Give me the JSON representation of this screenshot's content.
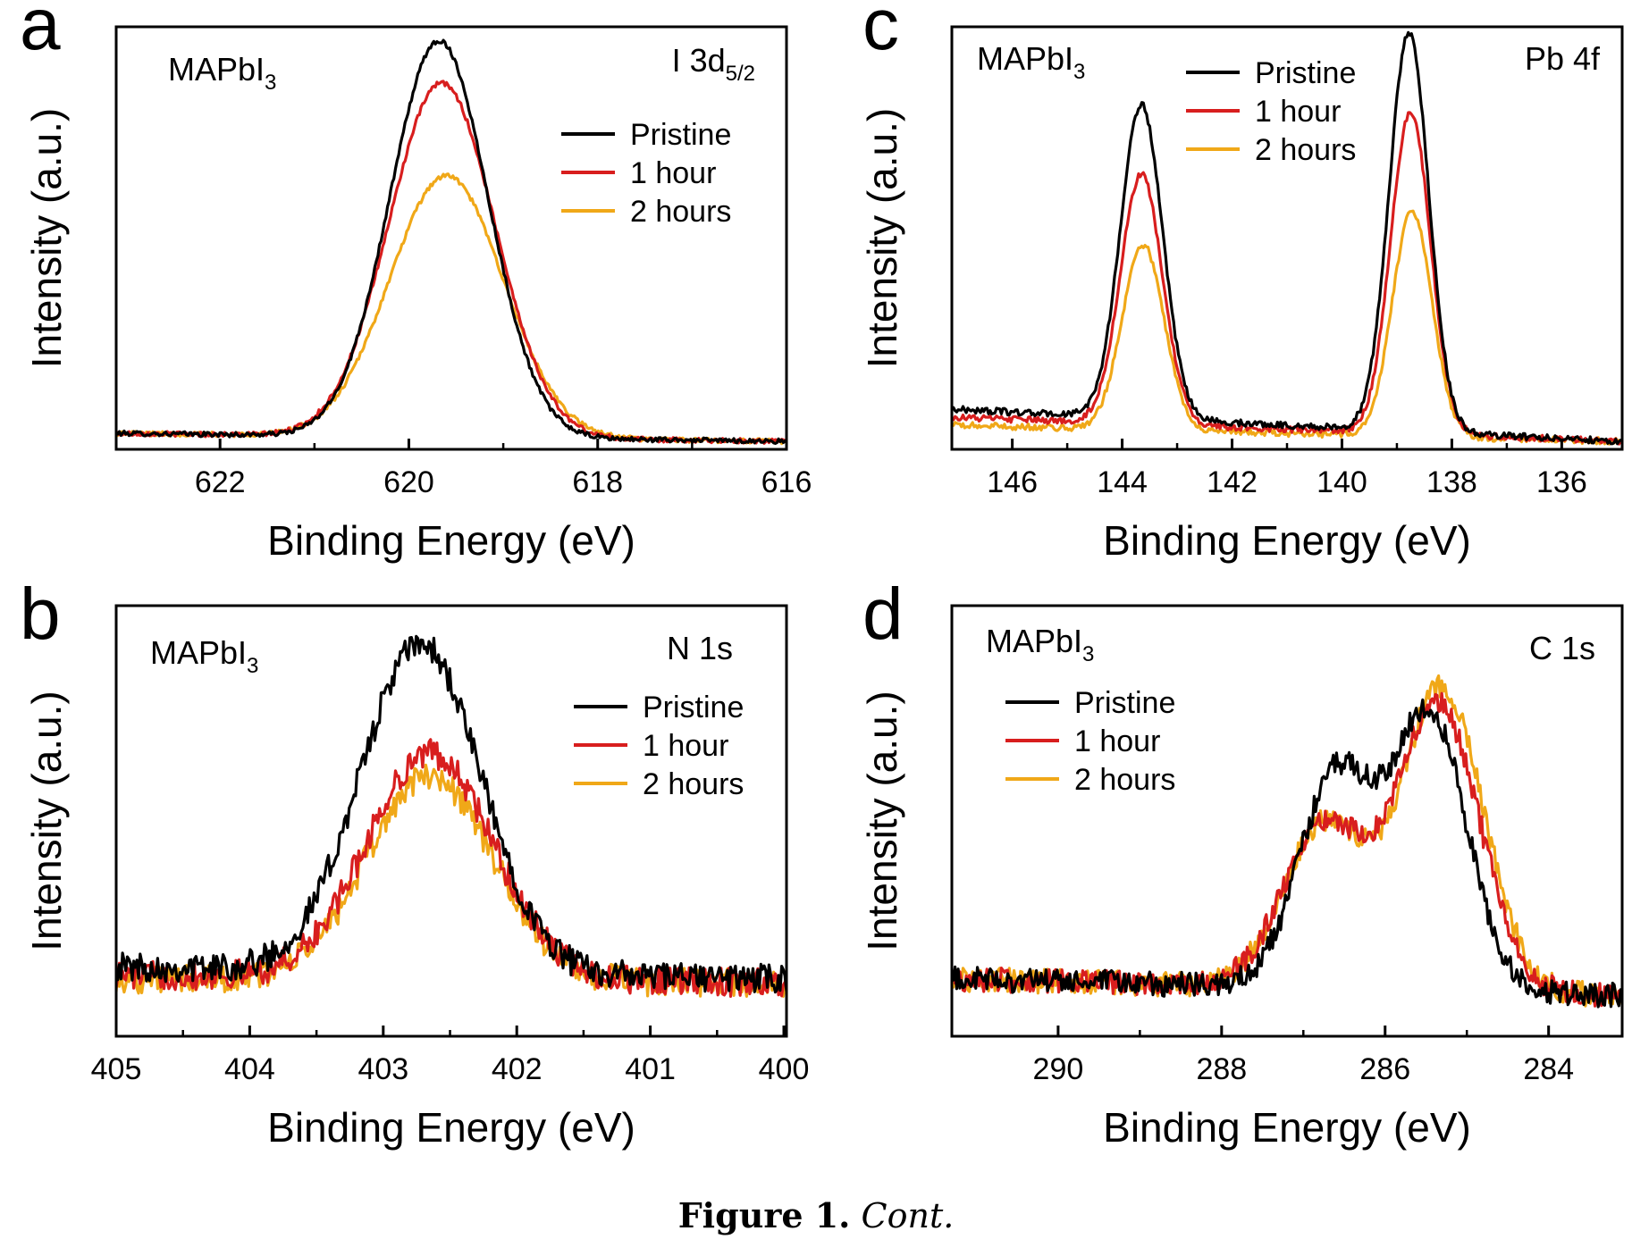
{
  "caption": {
    "label": "Figure 1.",
    "text": "Cont."
  },
  "colors": {
    "pristine": "#000000",
    "one_hour": "#d81e1e",
    "two_hours": "#f0a818"
  },
  "chart_data": [
    {
      "panel": "a",
      "type": "line",
      "sample_label": {
        "base": "MAPbI",
        "sub": "3"
      },
      "region_label": {
        "base": "I 3d",
        "sub": "5/2"
      },
      "xlabel": "Binding Energy (eV)",
      "ylabel": "Intensity (a.u.)",
      "xlim": [
        623.1,
        616.0
      ],
      "xticks": [
        622,
        620,
        618,
        616
      ],
      "ylim": [
        0,
        1.05
      ],
      "grid": false,
      "legend": "right",
      "series": [
        {
          "name": "Pristine",
          "color": "#000000",
          "noise": 0.006,
          "baseline": [
            0.0,
            623.1,
            0.04,
            616.0,
            0.02
          ],
          "peaks": [
            {
              "center": 619.68,
              "amp": 0.985,
              "width": 0.52
            }
          ]
        },
        {
          "name": "1 hour",
          "color": "#d81e1e",
          "noise": 0.006,
          "baseline": [
            0.0,
            623.1,
            0.04,
            616.0,
            0.02
          ],
          "peaks": [
            {
              "center": 619.65,
              "amp": 0.88,
              "width": 0.56
            }
          ]
        },
        {
          "name": "2 hours",
          "color": "#f0a818",
          "noise": 0.006,
          "baseline": [
            0.0,
            623.1,
            0.04,
            616.0,
            0.02
          ],
          "peaks": [
            {
              "center": 619.6,
              "amp": 0.65,
              "width": 0.6
            }
          ]
        }
      ]
    },
    {
      "panel": "b",
      "type": "line",
      "sample_label": {
        "base": "MAPbI",
        "sub": "3"
      },
      "region_label": {
        "base": "N 1s",
        "sub": ""
      },
      "xlabel": "Binding Energy (eV)",
      "ylabel": "Intensity (a.u.)",
      "xlim": [
        405.0,
        399.98
      ],
      "xticks": [
        405,
        404,
        403,
        402,
        401,
        400
      ],
      "ylim": [
        0,
        1.05
      ],
      "grid": false,
      "legend": "right",
      "series": [
        {
          "name": "Pristine",
          "color": "#000000",
          "noise": 0.035,
          "baseline": [
            0.0,
            405.0,
            0.17,
            400.0,
            0.14
          ],
          "peaks": [
            {
              "center": 402.72,
              "amp": 0.8,
              "width": 0.45
            }
          ]
        },
        {
          "name": "1 hour",
          "color": "#d81e1e",
          "noise": 0.035,
          "baseline": [
            0.0,
            405.0,
            0.15,
            400.0,
            0.13
          ],
          "peaks": [
            {
              "center": 402.65,
              "amp": 0.55,
              "width": 0.47
            }
          ]
        },
        {
          "name": "2 hours",
          "color": "#f0a818",
          "noise": 0.035,
          "baseline": [
            0.0,
            405.0,
            0.14,
            400.0,
            0.13
          ],
          "peaks": [
            {
              "center": 402.65,
              "amp": 0.5,
              "width": 0.47
            }
          ]
        }
      ]
    },
    {
      "panel": "c",
      "type": "line",
      "sample_label": {
        "base": "MAPbI",
        "sub": "3"
      },
      "region_label": {
        "base": "Pb 4f",
        "sub": ""
      },
      "xlabel": "Binding Energy (eV)",
      "ylabel": "Intensity (a.u.)",
      "xlim": [
        147.1,
        134.9
      ],
      "xticks": [
        146,
        144,
        142,
        140,
        138,
        136
      ],
      "ylim": [
        0,
        1.05
      ],
      "grid": false,
      "legend": "top-center",
      "series": [
        {
          "name": "Pristine",
          "color": "#000000",
          "noise": 0.008,
          "baseline": [
            0.06,
            147.1,
            0.1,
            134.9,
            0.02
          ],
          "peaks": [
            {
              "center": 143.65,
              "amp": 0.78,
              "width": 0.38
            },
            {
              "center": 138.78,
              "amp": 0.99,
              "width": 0.36
            }
          ]
        },
        {
          "name": "1 hour",
          "color": "#d81e1e",
          "noise": 0.008,
          "baseline": [
            0.06,
            147.1,
            0.08,
            134.9,
            0.02
          ],
          "peaks": [
            {
              "center": 143.65,
              "amp": 0.62,
              "width": 0.38
            },
            {
              "center": 138.75,
              "amp": 0.8,
              "width": 0.36
            }
          ]
        },
        {
          "name": "2 hours",
          "color": "#f0a818",
          "noise": 0.008,
          "baseline": [
            0.06,
            147.1,
            0.06,
            134.9,
            0.02
          ],
          "peaks": [
            {
              "center": 143.62,
              "amp": 0.46,
              "width": 0.38
            },
            {
              "center": 138.72,
              "amp": 0.56,
              "width": 0.36
            }
          ]
        }
      ]
    },
    {
      "panel": "d",
      "type": "line",
      "sample_label": {
        "base": "MAPbI",
        "sub": "3"
      },
      "region_label": {
        "base": "C 1s",
        "sub": ""
      },
      "xlabel": "Binding Energy (eV)",
      "ylabel": "Intensity (a.u.)",
      "xlim": [
        291.3,
        283.1
      ],
      "xticks": [
        290,
        288,
        286,
        284
      ],
      "ylim": [
        0,
        1.05
      ],
      "grid": false,
      "legend": "top-left",
      "series": [
        {
          "name": "Pristine",
          "color": "#000000",
          "noise": 0.03,
          "baseline": [
            0.0,
            291.3,
            0.14,
            283.1,
            0.1
          ],
          "peaks": [
            {
              "center": 286.6,
              "amp": 0.52,
              "width": 0.45
            },
            {
              "center": 285.45,
              "amp": 0.67,
              "width": 0.45
            }
          ]
        },
        {
          "name": "1 hour",
          "color": "#d81e1e",
          "noise": 0.03,
          "baseline": [
            0.0,
            291.3,
            0.14,
            283.1,
            0.1
          ],
          "peaks": [
            {
              "center": 286.75,
              "amp": 0.4,
              "width": 0.5
            },
            {
              "center": 285.35,
              "amp": 0.7,
              "width": 0.5
            }
          ]
        },
        {
          "name": "2 hours",
          "color": "#f0a818",
          "noise": 0.03,
          "baseline": [
            0.0,
            291.3,
            0.14,
            283.1,
            0.1
          ],
          "peaks": [
            {
              "center": 286.75,
              "amp": 0.4,
              "width": 0.5
            },
            {
              "center": 285.3,
              "amp": 0.74,
              "width": 0.5
            }
          ]
        }
      ]
    }
  ]
}
